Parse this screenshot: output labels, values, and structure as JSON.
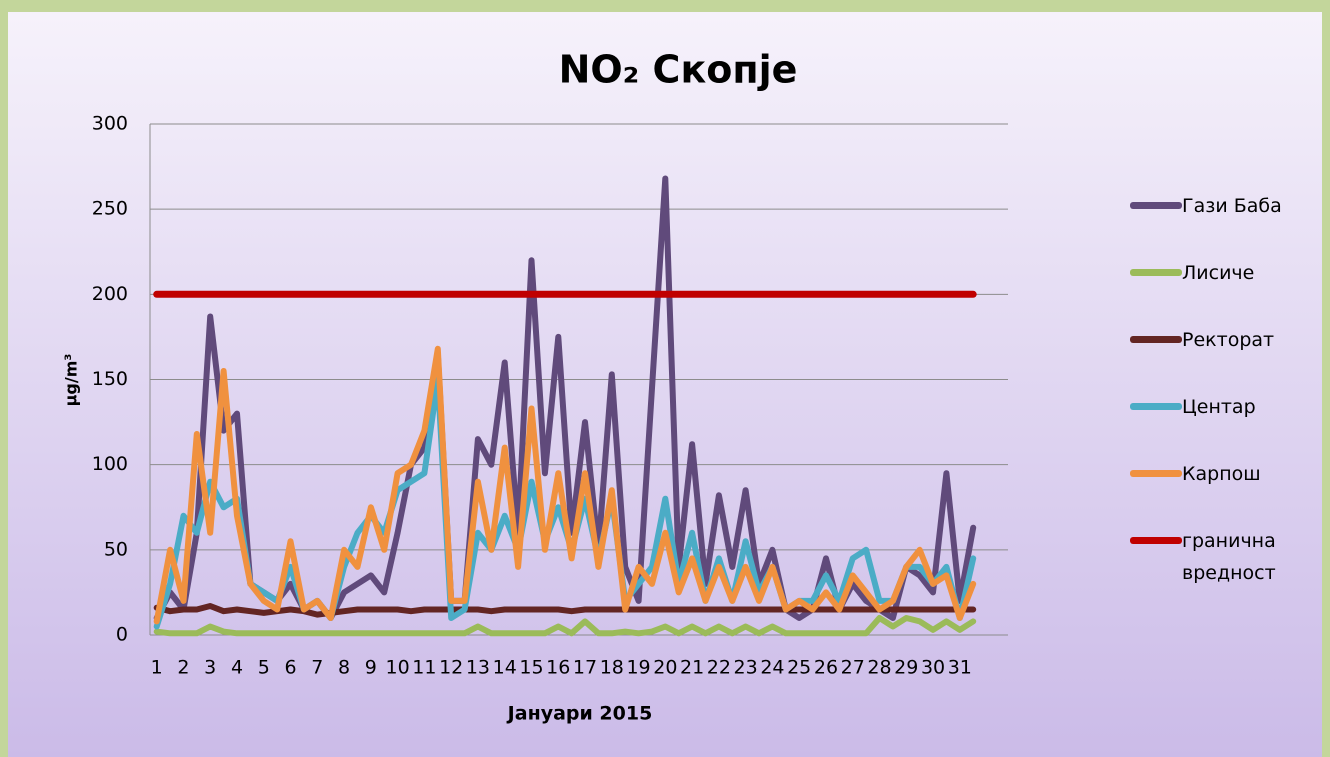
{
  "chart_data": {
    "type": "line",
    "title": "NO₂ Скопје",
    "x_label": "Јануари 2015",
    "y_label": "μg/m³",
    "x": [
      1,
      1.5,
      2,
      2.5,
      3,
      3.5,
      4,
      4.5,
      5,
      5.5,
      6,
      6.5,
      7,
      7.5,
      8,
      8.5,
      9,
      9.5,
      10,
      10.5,
      11,
      11.5,
      12,
      12.5,
      13,
      13.5,
      14,
      14.5,
      15,
      15.5,
      16,
      16.5,
      17,
      17.5,
      18,
      18.5,
      19,
      19.5,
      20,
      20.5,
      21,
      21.5,
      22,
      22.5,
      23,
      23.5,
      24,
      24.5,
      25,
      25.5,
      26,
      26.5,
      27,
      27.5,
      28,
      28.5,
      29,
      29.5,
      30,
      30.5,
      31,
      31.5
    ],
    "xlim": [
      0.75,
      32.8
    ],
    "xticks": [
      1,
      2,
      3,
      4,
      5,
      6,
      7,
      8,
      9,
      10,
      11,
      12,
      13,
      14,
      15,
      16,
      17,
      18,
      19,
      20,
      21,
      22,
      23,
      24,
      25,
      26,
      27,
      28,
      29,
      30,
      31
    ],
    "ylim": [
      0,
      300
    ],
    "yticks": [
      0,
      50,
      100,
      150,
      200,
      250,
      300
    ],
    "grid": true,
    "series": [
      {
        "name": "Гази Баба",
        "color": "#604a7b",
        "values": [
          10,
          25,
          15,
          60,
          187,
          120,
          130,
          30,
          25,
          20,
          30,
          15,
          20,
          10,
          25,
          30,
          35,
          25,
          60,
          100,
          110,
          165,
          20,
          20,
          115,
          100,
          160,
          60,
          220,
          95,
          175,
          60,
          125,
          50,
          153,
          40,
          20,
          145,
          268,
          40,
          112,
          30,
          82,
          40,
          85,
          30,
          50,
          15,
          10,
          15,
          45,
          15,
          30,
          20,
          15,
          10,
          40,
          35,
          25,
          95,
          20,
          63
        ]
      },
      {
        "name": "Лисиче",
        "color": "#9bbb59",
        "values": [
          2,
          1,
          1,
          1,
          5,
          2,
          1,
          1,
          1,
          1,
          1,
          1,
          1,
          1,
          1,
          1,
          1,
          1,
          1,
          1,
          1,
          1,
          1,
          1,
          5,
          1,
          1,
          1,
          1,
          1,
          5,
          1,
          8,
          1,
          1,
          2,
          1,
          2,
          5,
          1,
          5,
          1,
          5,
          1,
          5,
          1,
          5,
          1,
          1,
          1,
          1,
          1,
          1,
          1,
          10,
          5,
          10,
          8,
          3,
          8,
          3,
          8
        ]
      },
      {
        "name": "Ректорат",
        "color": "#632523",
        "values": [
          16,
          14,
          15,
          15,
          17,
          14,
          15,
          14,
          13,
          14,
          15,
          14,
          12,
          13,
          14,
          15,
          15,
          15,
          15,
          14,
          15,
          15,
          15,
          15,
          15,
          14,
          15,
          15,
          15,
          15,
          15,
          14,
          15,
          15,
          15,
          15,
          15,
          15,
          15,
          15,
          15,
          15,
          15,
          15,
          15,
          15,
          15,
          15,
          15,
          15,
          15,
          15,
          15,
          15,
          15,
          15,
          15,
          15,
          15,
          15,
          15,
          15
        ]
      },
      {
        "name": "Центар",
        "color": "#4bacc6",
        "values": [
          5,
          30,
          70,
          60,
          90,
          75,
          80,
          30,
          25,
          20,
          40,
          15,
          20,
          10,
          40,
          60,
          70,
          60,
          85,
          90,
          95,
          150,
          10,
          15,
          60,
          50,
          70,
          50,
          90,
          55,
          75,
          50,
          80,
          45,
          80,
          20,
          30,
          40,
          80,
          30,
          60,
          20,
          45,
          20,
          55,
          25,
          40,
          15,
          20,
          20,
          35,
          20,
          45,
          50,
          20,
          20,
          40,
          40,
          30,
          40,
          10,
          45
        ]
      },
      {
        "name": "Карпош",
        "color": "#f0913f",
        "values": [
          8,
          50,
          20,
          118,
          60,
          155,
          70,
          30,
          20,
          15,
          55,
          15,
          20,
          10,
          50,
          40,
          75,
          50,
          95,
          100,
          120,
          168,
          20,
          20,
          90,
          50,
          110,
          40,
          133,
          50,
          95,
          45,
          95,
          40,
          85,
          15,
          40,
          30,
          60,
          25,
          45,
          20,
          40,
          20,
          40,
          20,
          40,
          15,
          20,
          15,
          25,
          15,
          35,
          25,
          15,
          20,
          40,
          50,
          30,
          35,
          10,
          30
        ]
      },
      {
        "name": "гранична вредност",
        "color": "#c00000",
        "values": [
          200,
          200,
          200,
          200,
          200,
          200,
          200,
          200,
          200,
          200,
          200,
          200,
          200,
          200,
          200,
          200,
          200,
          200,
          200,
          200,
          200,
          200,
          200,
          200,
          200,
          200,
          200,
          200,
          200,
          200,
          200,
          200,
          200,
          200,
          200,
          200,
          200,
          200,
          200,
          200,
          200,
          200,
          200,
          200,
          200,
          200,
          200,
          200,
          200,
          200,
          200,
          200,
          200,
          200,
          200,
          200,
          200,
          200,
          200,
          200,
          200,
          200
        ]
      }
    ]
  }
}
